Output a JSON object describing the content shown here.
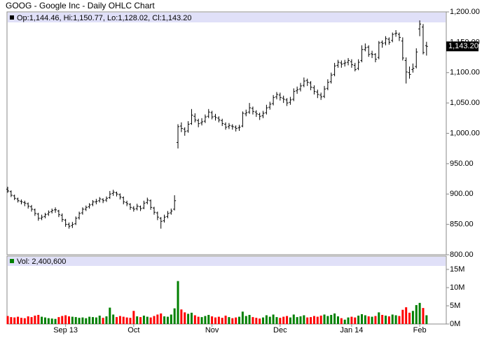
{
  "chart_data": {
    "type": "ohlc",
    "title": "GOOG - Google Inc - Daily OHLC Chart",
    "info": "Op:1,144.46, Hi:1,150.77, Lo:1,128.02, Cl:1,143.20",
    "last_label": "1,143.20",
    "color": "#000000",
    "categories": [
      null,
      null,
      null,
      null,
      null,
      null,
      null,
      null,
      null,
      null,
      null,
      null,
      null,
      null,
      null,
      null,
      null,
      "Sep 13",
      null,
      null,
      null,
      null,
      null,
      null,
      null,
      null,
      null,
      null,
      null,
      null,
      null,
      null,
      null,
      null,
      null,
      null,
      null,
      "Oct",
      null,
      null,
      null,
      null,
      null,
      null,
      null,
      null,
      null,
      null,
      null,
      null,
      null,
      null,
      null,
      null,
      null,
      null,
      null,
      null,
      null,
      null,
      "Nov",
      null,
      null,
      null,
      null,
      null,
      null,
      null,
      null,
      null,
      null,
      null,
      null,
      null,
      null,
      null,
      null,
      null,
      null,
      null,
      "Dec",
      null,
      null,
      null,
      null,
      null,
      null,
      null,
      null,
      null,
      null,
      null,
      null,
      null,
      null,
      null,
      null,
      null,
      null,
      null,
      null,
      "Jan 14",
      null,
      null,
      null,
      null,
      null,
      null,
      null,
      null,
      null,
      null,
      null,
      null,
      null,
      null,
      null,
      null,
      null,
      null,
      null,
      "Feb",
      null,
      null
    ],
    "open": [
      908,
      904,
      897,
      892,
      888,
      886,
      884,
      879,
      874,
      867,
      860,
      863,
      867,
      871,
      874,
      872,
      865,
      857,
      850,
      848,
      851,
      861,
      869,
      875,
      879,
      883,
      887,
      889,
      891,
      890,
      894,
      901,
      902,
      899,
      894,
      886,
      883,
      877,
      876,
      879,
      877,
      886,
      889,
      877,
      869,
      860,
      856,
      863,
      869,
      875,
      985,
      1012,
      1007,
      1004,
      1016,
      1028,
      1021,
      1017,
      1020,
      1028,
      1034,
      1028,
      1025,
      1021,
      1015,
      1011,
      1012,
      1010,
      1009,
      1012,
      1032,
      1035,
      1041,
      1035,
      1031,
      1029,
      1034,
      1043,
      1049,
      1060,
      1063,
      1058,
      1055,
      1051,
      1056,
      1070,
      1073,
      1079,
      1087,
      1083,
      1075,
      1068,
      1063,
      1061,
      1074,
      1085,
      1097,
      1112,
      1116,
      1115,
      1117,
      1118,
      1112,
      1107,
      1120,
      1138,
      1142,
      1131,
      1130,
      1125,
      1150,
      1149,
      1155,
      1153,
      1164,
      1163,
      1152,
      1120,
      1100,
      1105,
      1110,
      1172,
      1175,
      1144.46
    ],
    "high": [
      912,
      906,
      899,
      894,
      891,
      889,
      886,
      882,
      876,
      869,
      866,
      869,
      873,
      876,
      878,
      874,
      868,
      859,
      853,
      854,
      863,
      871,
      878,
      881,
      885,
      890,
      892,
      895,
      893,
      896,
      905,
      907,
      904,
      901,
      896,
      889,
      885,
      880,
      884,
      881,
      889,
      894,
      891,
      879,
      871,
      862,
      866,
      872,
      876,
      898,
      1015,
      1018,
      1010,
      1020,
      1040,
      1033,
      1024,
      1025,
      1031,
      1040,
      1037,
      1032,
      1028,
      1024,
      1018,
      1017,
      1015,
      1013,
      1014,
      1036,
      1039,
      1050,
      1044,
      1038,
      1034,
      1037,
      1047,
      1052,
      1063,
      1068,
      1067,
      1062,
      1058,
      1060,
      1074,
      1077,
      1083,
      1092,
      1090,
      1086,
      1079,
      1072,
      1067,
      1078,
      1089,
      1100,
      1116,
      1121,
      1120,
      1121,
      1124,
      1122,
      1116,
      1122,
      1145,
      1148,
      1145,
      1136,
      1132,
      1152,
      1153,
      1160,
      1158,
      1166,
      1170,
      1166,
      1158,
      1125,
      1110,
      1115,
      1140,
      1186,
      1180,
      1150.77
    ],
    "low": [
      902,
      895,
      890,
      886,
      883,
      880,
      876,
      871,
      864,
      856,
      857,
      860,
      864,
      868,
      869,
      862,
      854,
      846,
      843,
      844,
      849,
      858,
      866,
      872,
      876,
      880,
      883,
      886,
      885,
      887,
      892,
      897,
      896,
      891,
      883,
      880,
      874,
      871,
      873,
      872,
      875,
      883,
      874,
      866,
      857,
      843,
      853,
      860,
      866,
      873,
      975,
      1002,
      996,
      1001,
      1014,
      1018,
      1010,
      1013,
      1017,
      1025,
      1023,
      1021,
      1018,
      1012,
      1006,
      1007,
      1006,
      1003,
      1004,
      1010,
      1028,
      1032,
      1031,
      1027,
      1022,
      1025,
      1031,
      1039,
      1046,
      1056,
      1054,
      1050,
      1045,
      1047,
      1053,
      1065,
      1069,
      1076,
      1078,
      1071,
      1064,
      1058,
      1055,
      1058,
      1071,
      1082,
      1094,
      1108,
      1108,
      1110,
      1112,
      1108,
      1102,
      1104,
      1117,
      1135,
      1126,
      1124,
      1117,
      1122,
      1141,
      1145,
      1146,
      1150,
      1159,
      1152,
      1120,
      1082,
      1090,
      1100,
      1107,
      1160,
      1130,
      1128.02
    ],
    "close": [
      905,
      898,
      893,
      889,
      887,
      885,
      880,
      875,
      868,
      860,
      862,
      866,
      870,
      873,
      874,
      866,
      858,
      850,
      847,
      850,
      860,
      868,
      875,
      878,
      882,
      887,
      888,
      892,
      889,
      893,
      900,
      903,
      900,
      895,
      887,
      884,
      878,
      875,
      880,
      876,
      885,
      890,
      878,
      870,
      862,
      855,
      862,
      868,
      872,
      889,
      1011,
      1008,
      1003,
      1015,
      1030,
      1022,
      1016,
      1019,
      1027,
      1035,
      1027,
      1026,
      1022,
      1016,
      1010,
      1013,
      1011,
      1008,
      1010,
      1033,
      1034,
      1042,
      1036,
      1032,
      1028,
      1033,
      1042,
      1048,
      1059,
      1064,
      1059,
      1056,
      1050,
      1055,
      1069,
      1072,
      1078,
      1086,
      1084,
      1076,
      1069,
      1064,
      1060,
      1073,
      1084,
      1096,
      1111,
      1117,
      1114,
      1116,
      1120,
      1113,
      1105,
      1117,
      1138,
      1141,
      1130,
      1130,
      1122,
      1149,
      1148,
      1156,
      1150,
      1163,
      1165,
      1158,
      1124,
      1101,
      1097,
      1107,
      1134,
      1180,
      1133,
      1143.2
    ],
    "ylim": [
      800,
      1200
    ],
    "yticks": [
      {
        "value": 800,
        "label": "800.00"
      },
      {
        "value": 850,
        "label": "850.00"
      },
      {
        "value": 900,
        "label": "900.00"
      },
      {
        "value": 950,
        "label": "950.00"
      },
      {
        "value": 1000,
        "label": "1,000.00"
      },
      {
        "value": 1050,
        "label": "1,050.00"
      },
      {
        "value": 1100,
        "label": "1,100.00"
      },
      {
        "value": 1150,
        "label": "1,150.00"
      },
      {
        "value": 1200,
        "label": "1,200.00"
      }
    ],
    "volume": {
      "label": "Vol: 2,400,600",
      "up_color": "#008000",
      "down_color": "#ff0000",
      "values": [
        2.2,
        1.9,
        1.8,
        2.0,
        1.7,
        1.6,
        2.1,
        1.9,
        2.3,
        2.5,
        2.0,
        1.8,
        1.6,
        1.5,
        1.4,
        1.9,
        2.2,
        2.4,
        2.1,
        2.0,
        1.9,
        1.7,
        1.8,
        1.6,
        2.0,
        1.9,
        1.8,
        2.3,
        1.7,
        2.1,
        4.5,
        2.6,
        1.9,
        2.2,
        2.0,
        1.8,
        1.7,
        3.6,
        2.1,
        1.9,
        2.3,
        2.0,
        1.8,
        2.2,
        2.6,
        2.9,
        2.1,
        2.0,
        2.6,
        4.3,
        11.8,
        4.0,
        3.2,
        2.8,
        3.1,
        2.4,
        2.0,
        1.9,
        2.2,
        2.5,
        2.1,
        1.8,
        2.0,
        1.7,
        2.3,
        1.9,
        1.6,
        1.8,
        2.0,
        3.4,
        2.2,
        2.5,
        1.9,
        1.7,
        1.5,
        1.8,
        2.4,
        2.0,
        2.6,
        1.9,
        1.7,
        2.0,
        2.2,
        1.8,
        2.6,
        1.9,
        2.1,
        2.4,
        1.8,
        1.9,
        2.2,
        2.0,
        2.3,
        2.6,
        2.2,
        2.5,
        2.9,
        2.1,
        1.6,
        1.2,
        1.8,
        2.0,
        1.8,
        2.3,
        2.7,
        2.4,
        2.1,
        2.0,
        2.2,
        3.2,
        2.5,
        2.3,
        2.1,
        2.6,
        2.4,
        2.2,
        3.9,
        4.6,
        3.1,
        3.6,
        5.2,
        5.8,
        4.4,
        2.4006
      ],
      "ylim": [
        0,
        18.65
      ],
      "yticks": [
        {
          "value": 0,
          "label": "0M"
        },
        {
          "value": 5,
          "label": "5M"
        },
        {
          "value": 10,
          "label": "10M"
        },
        {
          "value": 15,
          "label": "15M"
        }
      ]
    }
  }
}
